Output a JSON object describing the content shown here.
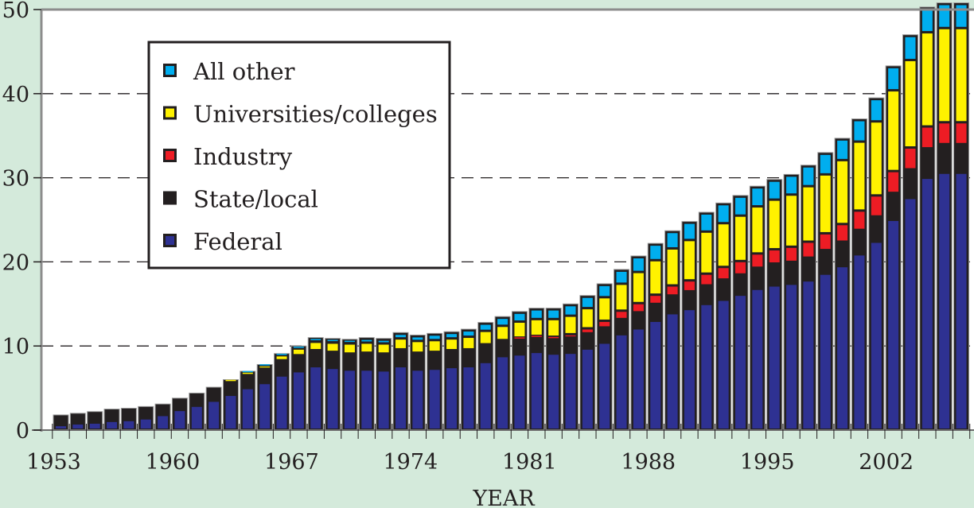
{
  "chart_data": {
    "type": "bar",
    "stacked": true,
    "title": "",
    "xlabel": "YEAR",
    "ylabel": "",
    "ylim": [
      0,
      50
    ],
    "yticks": [
      0,
      10,
      20,
      30,
      40,
      50
    ],
    "xtick_labels": [
      "1953",
      "1960",
      "1967",
      "1974",
      "1981",
      "1988",
      "1995",
      "2002"
    ],
    "grid": "horizontal-dashed",
    "legend_placement": "top-left",
    "categories": [
      "1953",
      "1954",
      "1955",
      "1956",
      "1957",
      "1958",
      "1959",
      "1960",
      "1961",
      "1962",
      "1963",
      "1964",
      "1965",
      "1966",
      "1967",
      "1968",
      "1969",
      "1970",
      "1971",
      "1972",
      "1973",
      "1974",
      "1975",
      "1976",
      "1977",
      "1978",
      "1979",
      "1980",
      "1981",
      "1982",
      "1983",
      "1984",
      "1985",
      "1986",
      "1987",
      "1988",
      "1989",
      "1990",
      "1991",
      "1992",
      "1993",
      "1994",
      "1995",
      "1996",
      "1997",
      "1998",
      "1999",
      "2000",
      "2001",
      "2002",
      "2003",
      "2004",
      "2005",
      "2006"
    ],
    "series": [
      {
        "name": "Federal",
        "color": "#2e3192",
        "values": [
          0.6,
          0.8,
          0.9,
          1.1,
          1.2,
          1.4,
          1.8,
          2.4,
          2.9,
          3.5,
          4.2,
          5.0,
          5.6,
          6.5,
          7.0,
          7.6,
          7.4,
          7.2,
          7.2,
          7.1,
          7.6,
          7.2,
          7.3,
          7.5,
          7.6,
          8.1,
          8.8,
          9.0,
          9.3,
          9.1,
          9.2,
          9.7,
          10.4,
          11.4,
          12.1,
          13.0,
          13.9,
          14.4,
          15.0,
          15.5,
          16.1,
          16.8,
          17.2,
          17.4,
          17.8,
          18.6,
          19.5,
          20.9,
          22.4,
          25.0,
          27.6,
          30.0,
          30.6,
          30.6
        ]
      },
      {
        "name": "State/local",
        "color": "#231f20",
        "values": [
          1.2,
          1.2,
          1.3,
          1.4,
          1.4,
          1.4,
          1.3,
          1.4,
          1.5,
          1.6,
          1.6,
          1.6,
          1.7,
          1.8,
          1.9,
          1.9,
          1.9,
          1.9,
          2.0,
          2.0,
          2.0,
          2.0,
          2.0,
          2.0,
          2.0,
          2.1,
          1.9,
          1.9,
          1.8,
          1.8,
          1.8,
          1.8,
          1.8,
          1.8,
          1.9,
          2.0,
          2.1,
          2.1,
          2.2,
          2.4,
          2.4,
          2.5,
          2.6,
          2.6,
          2.7,
          2.8,
          2.9,
          2.9,
          3.0,
          3.2,
          3.4,
          3.5,
          3.4,
          3.4
        ]
      },
      {
        "name": "Industry",
        "color": "#ed1c24",
        "values": [
          0,
          0,
          0,
          0,
          0,
          0,
          0,
          0,
          0,
          0,
          0,
          0,
          0,
          0,
          0,
          0,
          0,
          0,
          0,
          0,
          0,
          0,
          0,
          0,
          0,
          0,
          0,
          0.1,
          0.1,
          0.2,
          0.4,
          0.6,
          0.8,
          1.0,
          1.1,
          1.1,
          1.2,
          1.3,
          1.4,
          1.5,
          1.6,
          1.7,
          1.7,
          1.8,
          1.9,
          2.0,
          2.1,
          2.3,
          2.5,
          2.6,
          2.6,
          2.6,
          2.6,
          2.6
        ]
      },
      {
        "name": "Universities/colleges",
        "color": "#fff200",
        "values": [
          0,
          0,
          0,
          0,
          0,
          0,
          0,
          0,
          0,
          0,
          0.2,
          0.3,
          0.4,
          0.6,
          0.8,
          1.0,
          1.1,
          1.2,
          1.2,
          1.2,
          1.3,
          1.4,
          1.4,
          1.4,
          1.5,
          1.6,
          1.7,
          1.9,
          2.0,
          2.1,
          2.2,
          2.4,
          2.8,
          3.2,
          3.7,
          4.1,
          4.4,
          4.8,
          5.0,
          5.2,
          5.4,
          5.6,
          5.9,
          6.2,
          6.6,
          7.0,
          7.6,
          8.2,
          8.8,
          9.6,
          10.4,
          11.2,
          11.2,
          11.2
        ]
      },
      {
        "name": "All other",
        "color": "#00aeef",
        "values": [
          0,
          0,
          0,
          0,
          0,
          0,
          0,
          0,
          0,
          0,
          0,
          0.1,
          0.1,
          0.2,
          0.3,
          0.5,
          0.5,
          0.5,
          0.6,
          0.6,
          0.7,
          0.7,
          0.8,
          0.8,
          0.9,
          1.0,
          1.1,
          1.2,
          1.3,
          1.3,
          1.4,
          1.5,
          1.6,
          1.7,
          1.9,
          2.0,
          2.1,
          2.2,
          2.3,
          2.4,
          2.4,
          2.4,
          2.4,
          2.4,
          2.5,
          2.6,
          2.6,
          2.7,
          2.8,
          2.9,
          3.0,
          3.0,
          3.0,
          3.0
        ]
      }
    ],
    "legend": [
      {
        "label": "All other",
        "color": "#00aeef"
      },
      {
        "label": "Universities/colleges",
        "color": "#fff200"
      },
      {
        "label": "Industry",
        "color": "#ed1c24"
      },
      {
        "label": "State/local",
        "color": "#231f20"
      },
      {
        "label": "Federal",
        "color": "#2e3192"
      }
    ]
  },
  "colors": {
    "background": "#d4eadb",
    "plot_background": "#ffffff",
    "bar_frame": "#231f20",
    "axis": "#8c8c8c"
  }
}
